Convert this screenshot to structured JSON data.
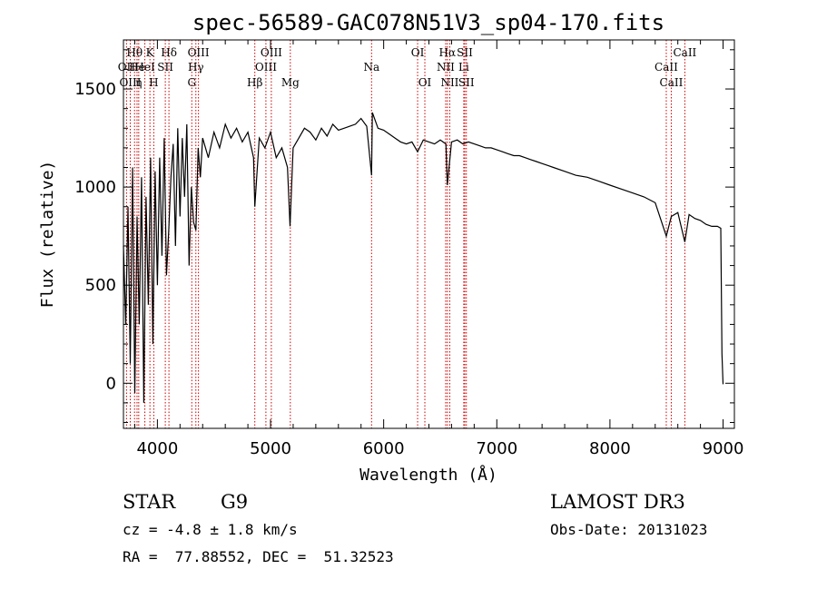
{
  "chart_data": {
    "type": "line",
    "title": "spec-56589-GAC078N51V3_sp04-170.fits",
    "xlabel": "Wavelength (Å)",
    "ylabel": "Flux (relative)",
    "xlim": [
      3700,
      9100
    ],
    "ylim": [
      -230,
      1750
    ],
    "xticks": [
      4000,
      5000,
      6000,
      7000,
      8000,
      9000
    ],
    "yticks": [
      0,
      500,
      1000,
      1500
    ],
    "xtick_labels": [
      "4000",
      "5000",
      "6000",
      "7000",
      "8000",
      "9000"
    ],
    "ytick_labels": [
      "0",
      "500",
      "1000",
      "1500"
    ],
    "series": [
      {
        "name": "flux",
        "x": [
          3700,
          3720,
          3740,
          3760,
          3780,
          3800,
          3820,
          3840,
          3860,
          3880,
          3900,
          3920,
          3940,
          3960,
          3980,
          4000,
          4020,
          4040,
          4060,
          4080,
          4100,
          4120,
          4140,
          4160,
          4180,
          4200,
          4220,
          4240,
          4260,
          4280,
          4300,
          4320,
          4340,
          4360,
          4380,
          4400,
          4450,
          4500,
          4550,
          4600,
          4650,
          4700,
          4750,
          4800,
          4850,
          4861,
          4900,
          4950,
          5000,
          5050,
          5100,
          5150,
          5172,
          5200,
          5250,
          5300,
          5350,
          5400,
          5450,
          5500,
          5550,
          5600,
          5650,
          5700,
          5750,
          5800,
          5850,
          5893,
          5900,
          5950,
          6000,
          6050,
          6100,
          6150,
          6200,
          6250,
          6300,
          6350,
          6400,
          6450,
          6500,
          6550,
          6563,
          6600,
          6650,
          6700,
          6750,
          6800,
          6850,
          6900,
          6950,
          7000,
          7050,
          7100,
          7150,
          7200,
          7250,
          7300,
          7350,
          7400,
          7450,
          7500,
          7600,
          7700,
          7800,
          7900,
          8000,
          8100,
          8200,
          8300,
          8400,
          8498,
          8542,
          8600,
          8662,
          8700,
          8750,
          8800,
          8850,
          8900,
          8950,
          8980,
          8990,
          9000
        ],
        "y": [
          700,
          300,
          900,
          100,
          1100,
          -50,
          850,
          300,
          1050,
          -100,
          950,
          400,
          1150,
          200,
          1080,
          500,
          1150,
          650,
          1250,
          550,
          780,
          1050,
          1220,
          700,
          1300,
          850,
          1250,
          950,
          1320,
          600,
          1000,
          820,
          780,
          1200,
          1050,
          1250,
          1150,
          1280,
          1200,
          1320,
          1250,
          1300,
          1230,
          1280,
          1150,
          900,
          1250,
          1200,
          1280,
          1150,
          1200,
          1100,
          800,
          1200,
          1250,
          1300,
          1280,
          1240,
          1300,
          1260,
          1320,
          1290,
          1300,
          1310,
          1320,
          1350,
          1310,
          1060,
          1380,
          1300,
          1290,
          1270,
          1250,
          1230,
          1220,
          1230,
          1180,
          1240,
          1230,
          1220,
          1240,
          1220,
          1010,
          1230,
          1240,
          1220,
          1230,
          1220,
          1210,
          1200,
          1200,
          1190,
          1180,
          1170,
          1160,
          1160,
          1150,
          1140,
          1130,
          1120,
          1110,
          1100,
          1080,
          1060,
          1050,
          1030,
          1010,
          990,
          970,
          950,
          920,
          750,
          850,
          870,
          720,
          860,
          840,
          830,
          810,
          800,
          800,
          790,
          150,
          -5
        ]
      }
    ],
    "spectral_lines": [
      {
        "label": "Hθ",
        "wavelength": 3798,
        "row": 1
      },
      {
        "label": "OII",
        "wavelength": 3727,
        "row": 2
      },
      {
        "label": "OIII",
        "wavelength": 3760,
        "row": 3
      },
      {
        "label": "He",
        "wavelength": 3820,
        "row": 2
      },
      {
        "label": "η",
        "wavelength": 3835,
        "row": 3
      },
      {
        "label": "K",
        "wavelength": 3934,
        "row": 1
      },
      {
        "label": "HeI",
        "wavelength": 3889,
        "row": 2
      },
      {
        "label": "H",
        "wavelength": 3968,
        "row": 3
      },
      {
        "label": "Hδ",
        "wavelength": 4102,
        "row": 1
      },
      {
        "label": "SII",
        "wavelength": 4070,
        "row": 2
      },
      {
        "label": "OIII",
        "wavelength": 4363,
        "row": 1
      },
      {
        "label": "Hγ",
        "wavelength": 4340,
        "row": 2
      },
      {
        "label": "G",
        "wavelength": 4304,
        "row": 3
      },
      {
        "label": "Hβ",
        "wavelength": 4861,
        "row": 3
      },
      {
        "label": "OIII",
        "wavelength": 5007,
        "row": 1
      },
      {
        "label": "OIII",
        "wavelength": 4959,
        "row": 2
      },
      {
        "label": "Mg",
        "wavelength": 5175,
        "row": 3
      },
      {
        "label": "Na",
        "wavelength": 5893,
        "row": 2
      },
      {
        "label": "OI",
        "wavelength": 6300,
        "row": 1
      },
      {
        "label": "OI",
        "wavelength": 6364,
        "row": 3
      },
      {
        "label": "Hα",
        "wavelength": 6563,
        "row": 1
      },
      {
        "label": "SII",
        "wavelength": 6717,
        "row": 1
      },
      {
        "label": "NII",
        "wavelength": 6548,
        "row": 2
      },
      {
        "label": "Li",
        "wavelength": 6708,
        "row": 2
      },
      {
        "label": "NII",
        "wavelength": 6584,
        "row": 3
      },
      {
        "label": "SII",
        "wavelength": 6731,
        "row": 3
      },
      {
        "label": "CaII",
        "wavelength": 8662,
        "row": 1
      },
      {
        "label": "CaII",
        "wavelength": 8498,
        "row": 2
      },
      {
        "label": "CaII",
        "wavelength": 8542,
        "row": 3
      }
    ],
    "grid": false,
    "line_marker_color": "#cc0000",
    "line_color": "#000000"
  },
  "info": {
    "object_class": "STAR",
    "subclass": "G9",
    "survey": "LAMOST DR3",
    "cz": "cz = -4.8 ± 1.8 km/s",
    "obs_date": "Obs-Date: 20131023",
    "coords": "RA =  77.88552, DEC =  51.32523"
  }
}
